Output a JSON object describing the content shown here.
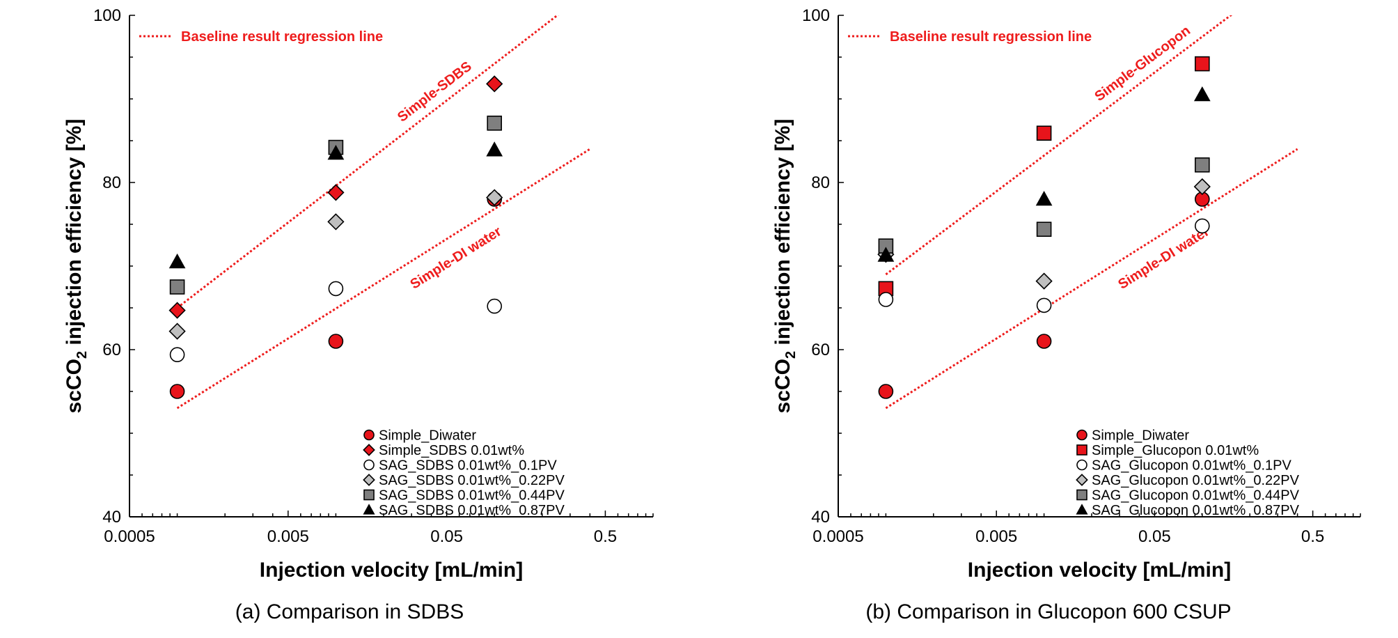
{
  "chart_data": [
    {
      "type": "scatter",
      "caption": "(a) Comparison in SDBS",
      "xlabel": "Injection velocity [mL/min]",
      "ylabel_main": "scCO",
      "ylabel_sub": "2",
      "ylabel_rest": " injection efficiency [%]",
      "x_scale": "log",
      "xlim": [
        0.0005,
        1.0
      ],
      "ylim": [
        40,
        100
      ],
      "x_ticks": [
        0.0005,
        0.005,
        0.05,
        0.5
      ],
      "x_tick_labels": [
        "0.0005",
        "0.005",
        "0.05",
        "0.5"
      ],
      "y_ticks": [
        40,
        60,
        80,
        100
      ],
      "y_tick_labels": [
        "40",
        "60",
        "80",
        "100"
      ],
      "regression_legend": "Baseline result regression line",
      "regression_color": "#ee1c1c",
      "regression_lines": [
        {
          "label": "Simple-SDBS",
          "x": [
            0.001,
            0.4
          ],
          "y": [
            65,
            103
          ]
        },
        {
          "label": "Simple-DI water",
          "x": [
            0.001,
            0.4
          ],
          "y": [
            53,
            84
          ]
        }
      ],
      "series": [
        {
          "name": "Simple_Diwater",
          "marker": "circle",
          "fill": "#e8141b",
          "x": [
            0.001,
            0.01,
            0.1
          ],
          "y": [
            55,
            61,
            78
          ]
        },
        {
          "name": "Simple_SDBS 0.01wt%",
          "marker": "diamond",
          "fill": "#e8141b",
          "x": [
            0.001,
            0.01,
            0.1
          ],
          "y": [
            64.7,
            78.8,
            91.8
          ]
        },
        {
          "name": "SAG_SDBS 0.01wt%_0.1PV",
          "marker": "circle",
          "fill": "#ffffff",
          "x": [
            0.001,
            0.01,
            0.1
          ],
          "y": [
            59.4,
            67.3,
            65.2
          ]
        },
        {
          "name": "SAG_SDBS 0.01wt%_0.22PV",
          "marker": "diamond",
          "fill": "#bfbfbf",
          "x": [
            0.001,
            0.01,
            0.1
          ],
          "y": [
            62.2,
            75.3,
            78.2
          ]
        },
        {
          "name": "SAG_SDBS 0.01wt%_0.44PV",
          "marker": "square",
          "fill": "#7f7f7f",
          "x": [
            0.001,
            0.01,
            0.1
          ],
          "y": [
            67.5,
            84.2,
            87.1
          ]
        },
        {
          "name": "SAG_SDBS 0.01wt%_0.87PV",
          "marker": "triangle",
          "fill": "#000000",
          "x": [
            0.001,
            0.01,
            0.1
          ],
          "y": [
            70.5,
            83.5,
            83.9
          ]
        }
      ]
    },
    {
      "type": "scatter",
      "caption": "(b) Comparison in Glucopon 600 CSUP",
      "xlabel": "Injection velocity [mL/min]",
      "ylabel_main": "scCO",
      "ylabel_sub": "2",
      "ylabel_rest": " injection efficiency [%]",
      "x_scale": "log",
      "xlim": [
        0.0005,
        1.0
      ],
      "ylim": [
        40,
        100
      ],
      "x_ticks": [
        0.0005,
        0.005,
        0.05,
        0.5
      ],
      "x_tick_labels": [
        "0.0005",
        "0.005",
        "0.05",
        "0.5"
      ],
      "y_ticks": [
        40,
        60,
        80,
        100
      ],
      "y_tick_labels": [
        "40",
        "60",
        "80",
        "100"
      ],
      "regression_legend": "Baseline result regression line",
      "regression_color": "#ee1c1c",
      "regression_lines": [
        {
          "label": "Simple-Glucopon",
          "x": [
            0.001,
            0.4
          ],
          "y": [
            69,
            106
          ]
        },
        {
          "label": "Simple-DI water",
          "x": [
            0.001,
            0.4
          ],
          "y": [
            53,
            84
          ]
        }
      ],
      "series": [
        {
          "name": "Simple_Diwater",
          "marker": "circle",
          "fill": "#e8141b",
          "x": [
            0.001,
            0.01,
            0.1
          ],
          "y": [
            55,
            61,
            78
          ]
        },
        {
          "name": "Simple_Glucopon 0.01wt%",
          "marker": "square",
          "fill": "#e8141b",
          "x": [
            0.001,
            0.01,
            0.1
          ],
          "y": [
            67.3,
            85.9,
            94.2
          ]
        },
        {
          "name": "SAG_Glucopon 0.01wt%_0.1PV",
          "marker": "circle",
          "fill": "#ffffff",
          "x": [
            0.001,
            0.01,
            0.1
          ],
          "y": [
            66,
            65.3,
            74.8
          ]
        },
        {
          "name": "SAG_Glucopon 0.01wt%_0.22PV",
          "marker": "diamond",
          "fill": "#bfbfbf",
          "x": [
            0.001,
            0.01,
            0.1
          ],
          "y": [
            71.4,
            68.2,
            79.5
          ]
        },
        {
          "name": "SAG_Glucopon 0.01wt%_0.44PV",
          "marker": "square",
          "fill": "#7f7f7f",
          "x": [
            0.001,
            0.01,
            0.1
          ],
          "y": [
            72.4,
            74.4,
            82.1
          ]
        },
        {
          "name": "SAG_Glucopon 0.01wt%_0.87PV",
          "marker": "triangle",
          "fill": "#000000",
          "x": [
            0.001,
            0.01,
            0.1
          ],
          "y": [
            71.3,
            78,
            90.5
          ]
        }
      ]
    }
  ]
}
